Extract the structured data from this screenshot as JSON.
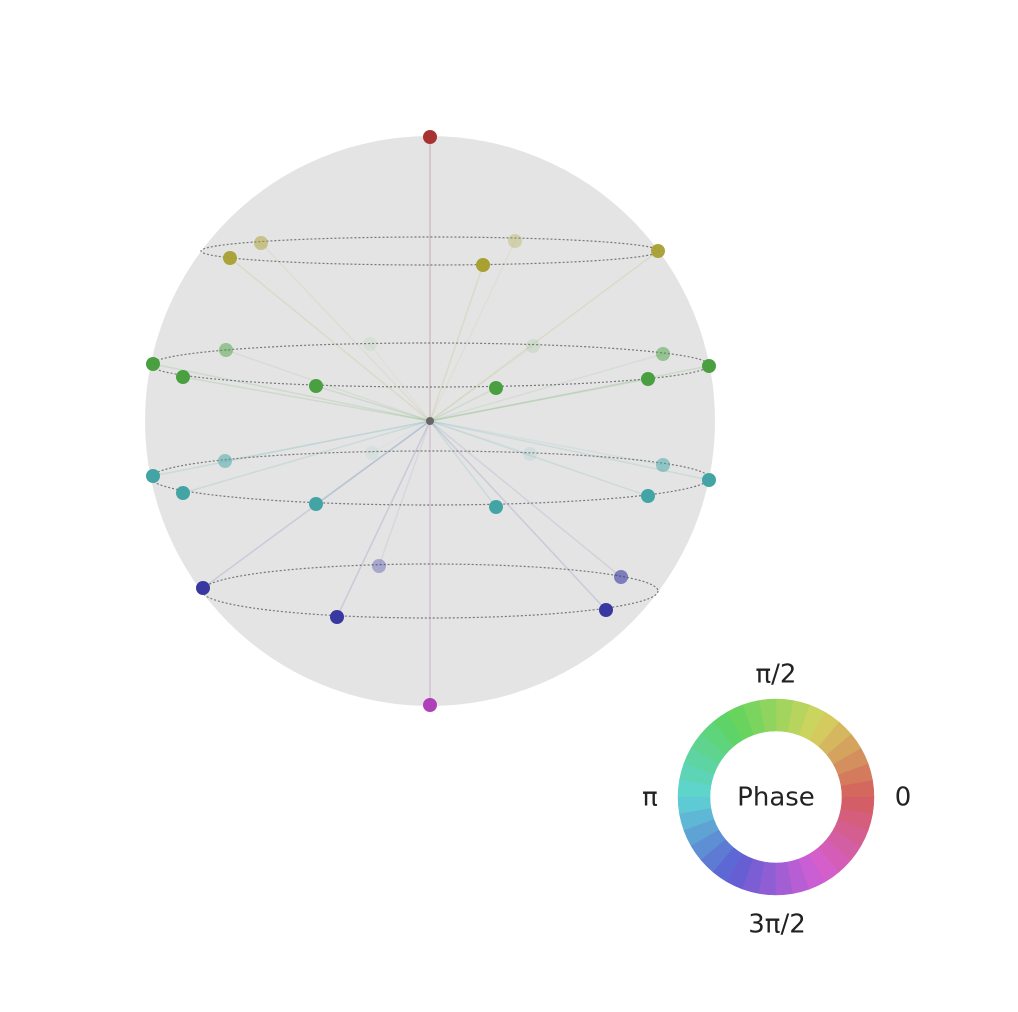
{
  "phase_wheel": {
    "labels": {
      "top": "π/2",
      "left": "π",
      "right": "0",
      "bottom": "3π/2"
    },
    "center_label": "Phase"
  }
}
